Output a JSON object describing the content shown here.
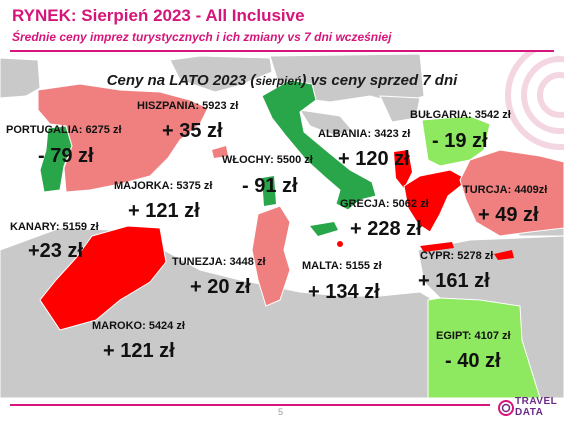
{
  "header": {
    "title": "RYNEK: Sierpień 2023 - All Inclusive",
    "subtitle": "Średnie ceny imprez turystycznych i ich zmiany vs 7 dni wcześniej"
  },
  "map": {
    "title_prefix": "Ceny na LATO 2023 (",
    "title_small": "sierpień",
    "title_suffix": ") vs ceny sprzed 7 dni",
    "colors": {
      "sea": "#ffffff",
      "land": "#c9c9c9",
      "up": "#ff0000",
      "up_light": "#f08080",
      "down": "#2aa64a",
      "down_light": "#8ee860"
    },
    "countries": [
      {
        "id": "hiszpania",
        "label": "HISZPANIA: 5923 zł",
        "change": "+ 35 zł"
      },
      {
        "id": "portugalia",
        "label": "PORTUGALIA: 6275 zł",
        "change": "- 79 zł"
      },
      {
        "id": "wlochy",
        "label": "WŁOCHY: 5500 zł",
        "change": "- 91 zł"
      },
      {
        "id": "majorka",
        "label": "MAJORKA: 5375 zł",
        "change": "+ 121 zł"
      },
      {
        "id": "albania",
        "label": "ALBANIA: 3423 zł",
        "change": "+ 120 zł"
      },
      {
        "id": "bulgaria",
        "label": "BUŁGARIA: 3542 zł",
        "change": "- 19 zł"
      },
      {
        "id": "turcja",
        "label": "TURCJA: 4409zł",
        "change": "+ 49 zł"
      },
      {
        "id": "grecja",
        "label": "GRECJA: 5062 zł",
        "change": "+ 228 zł"
      },
      {
        "id": "kanary",
        "label": "KANARY: 5159 zł",
        "change": "+23 zł"
      },
      {
        "id": "tunezja",
        "label": "TUNEZJA: 3448 zł",
        "change": "+ 20 zł"
      },
      {
        "id": "malta",
        "label": "MALTA: 5155 zł",
        "change": "+ 134 zł"
      },
      {
        "id": "cypr",
        "label": "CYPR: 5278 zł",
        "change": "+ 161 zł"
      },
      {
        "id": "maroko",
        "label": "MAROKO: 5424 zł",
        "change": "+ 121 zł"
      },
      {
        "id": "egipt",
        "label": "EGIPT: 4107 zł",
        "change": "- 40 zł"
      }
    ]
  },
  "footer": {
    "page": "5",
    "logo_line1": "TRAVEL",
    "logo_line2": "DATA"
  }
}
